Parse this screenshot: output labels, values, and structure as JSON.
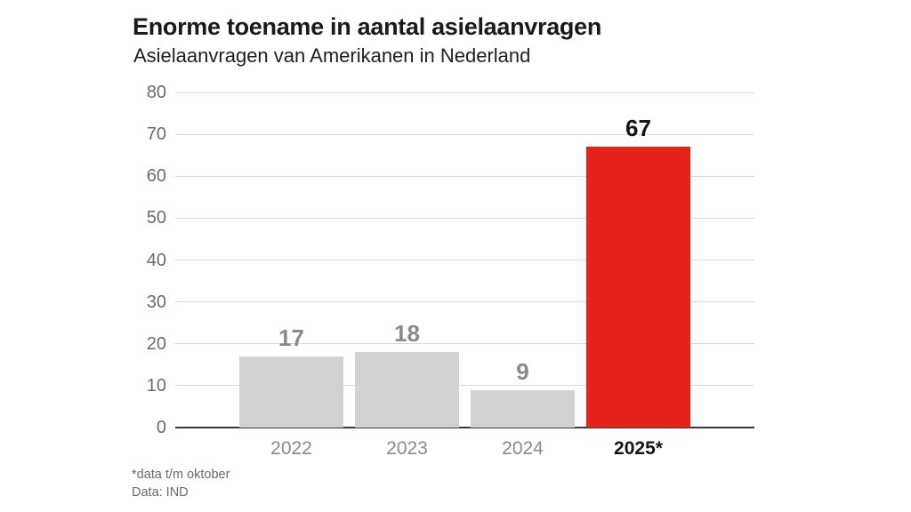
{
  "header": {
    "title": "Enorme toename in aantal asielaanvragen",
    "subtitle": "Asielaanvragen van Amerikanen in Nederland"
  },
  "chart_data": {
    "type": "bar",
    "title": "Enorme toename in aantal asielaanvragen",
    "subtitle": "Asielaanvragen van Amerikanen in Nederland",
    "categories": [
      "2022",
      "2023",
      "2024",
      "2025*"
    ],
    "values": [
      17,
      18,
      9,
      67
    ],
    "value_labels": [
      "17",
      "18",
      "9",
      "67"
    ],
    "xlabel": "",
    "ylabel": "",
    "ylim": [
      0,
      80
    ],
    "ytick_step": 10,
    "ytick_labels": [
      "0",
      "10",
      "20",
      "30",
      "40",
      "50",
      "60",
      "70",
      "80"
    ],
    "grid": true,
    "legend": false,
    "highlight_index": 3,
    "colors": {
      "bar_default": "#d2d2d2",
      "bar_highlight": "#e3221a",
      "value_label_default": "#8a8a8a",
      "value_label_highlight": "#141414",
      "xtick_default": "#8a8a8a",
      "xtick_highlight": "#141414",
      "ytick": "#6b6b6b",
      "gridline": "#d9d9d9",
      "axis": "#383838",
      "background": "#ffffff"
    }
  },
  "footer": {
    "note": "*data t/m oktober",
    "source": "Data: IND"
  }
}
